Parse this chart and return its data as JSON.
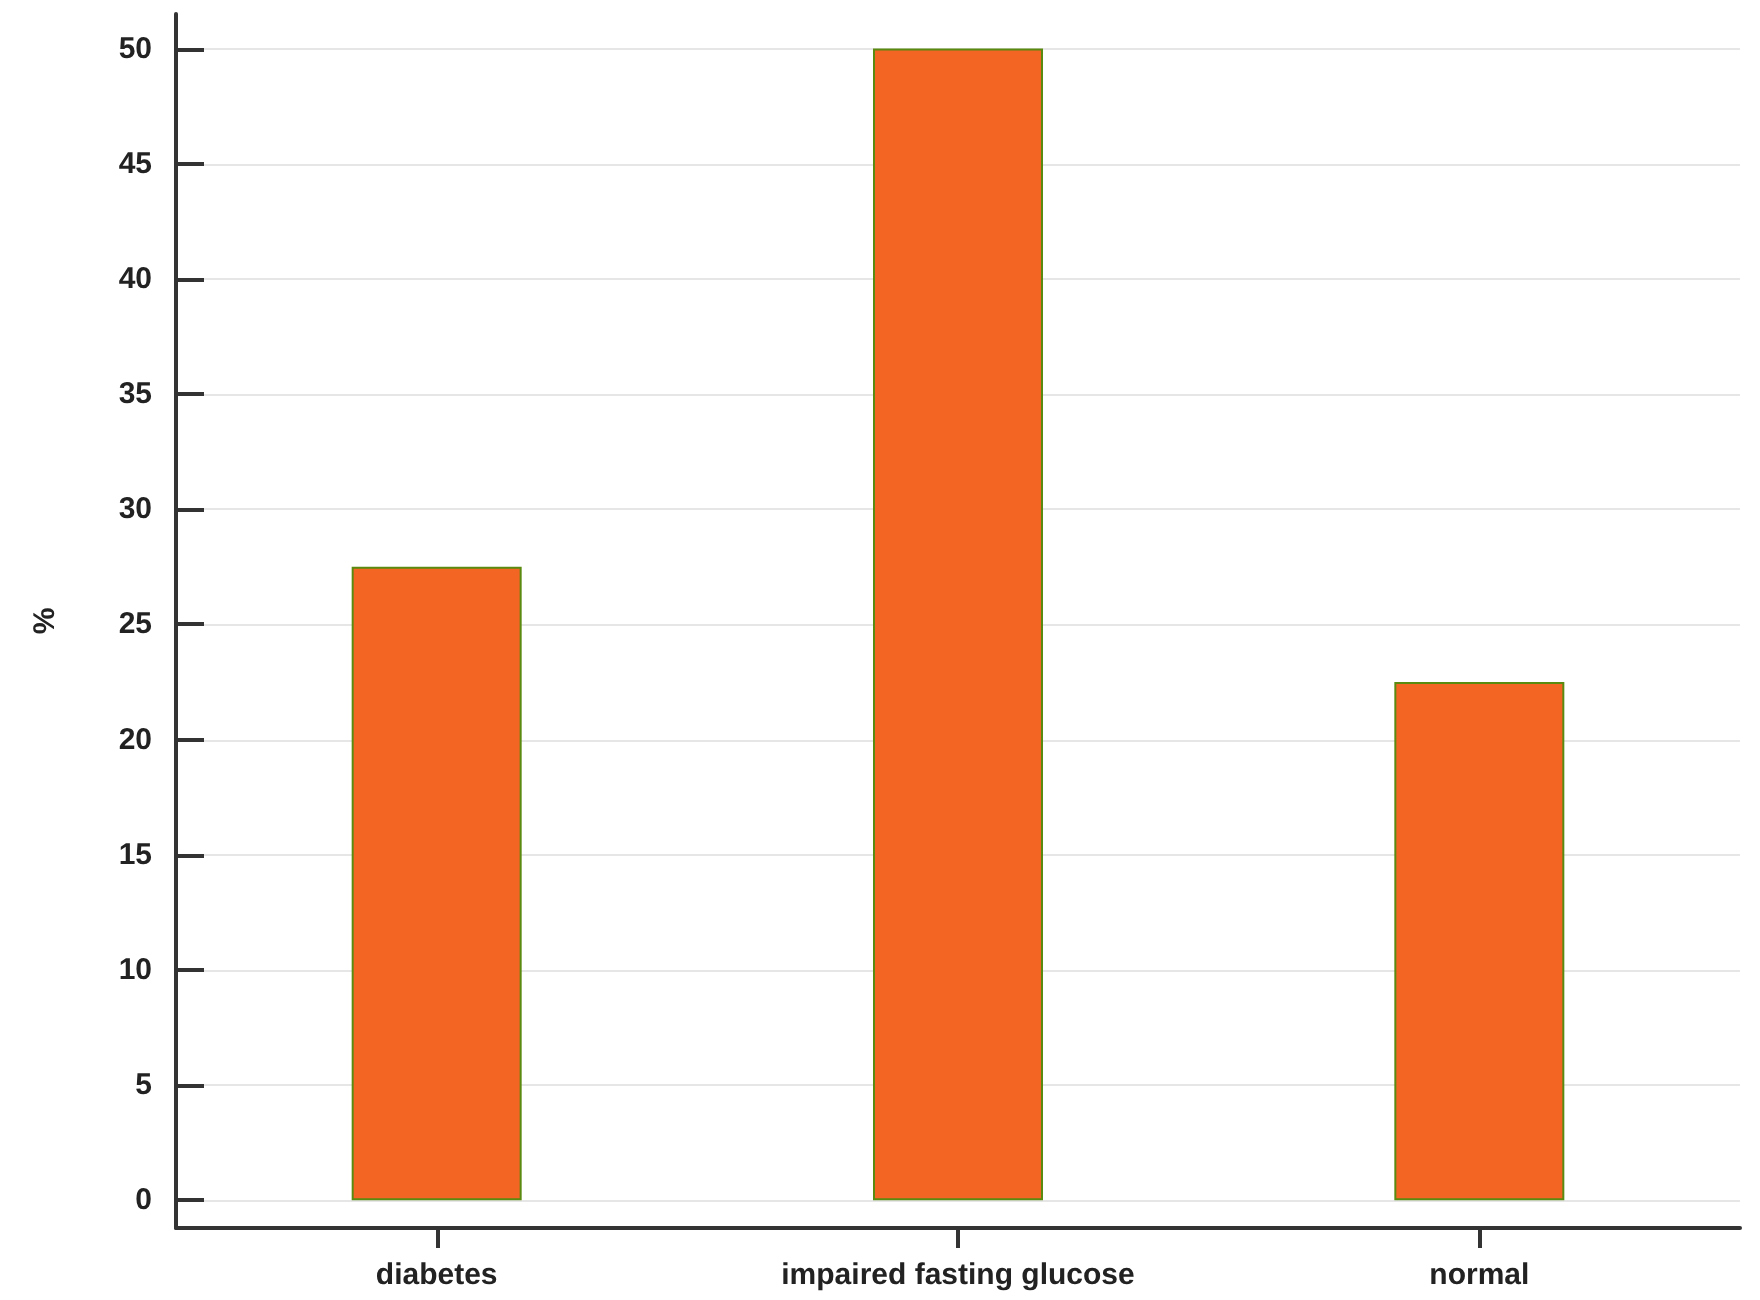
{
  "chart_data": {
    "type": "bar",
    "ylabel": "%",
    "categories": [
      "diabetes",
      "impaired fasting glucose",
      "normal"
    ],
    "values": [
      27.5,
      50,
      22.5
    ],
    "color": "#f26522",
    "ylim": [
      -1.2,
      51.5
    ],
    "yticks": [
      0,
      5,
      10,
      15,
      20,
      25,
      30,
      35,
      40,
      45,
      50
    ],
    "grid": "y"
  }
}
